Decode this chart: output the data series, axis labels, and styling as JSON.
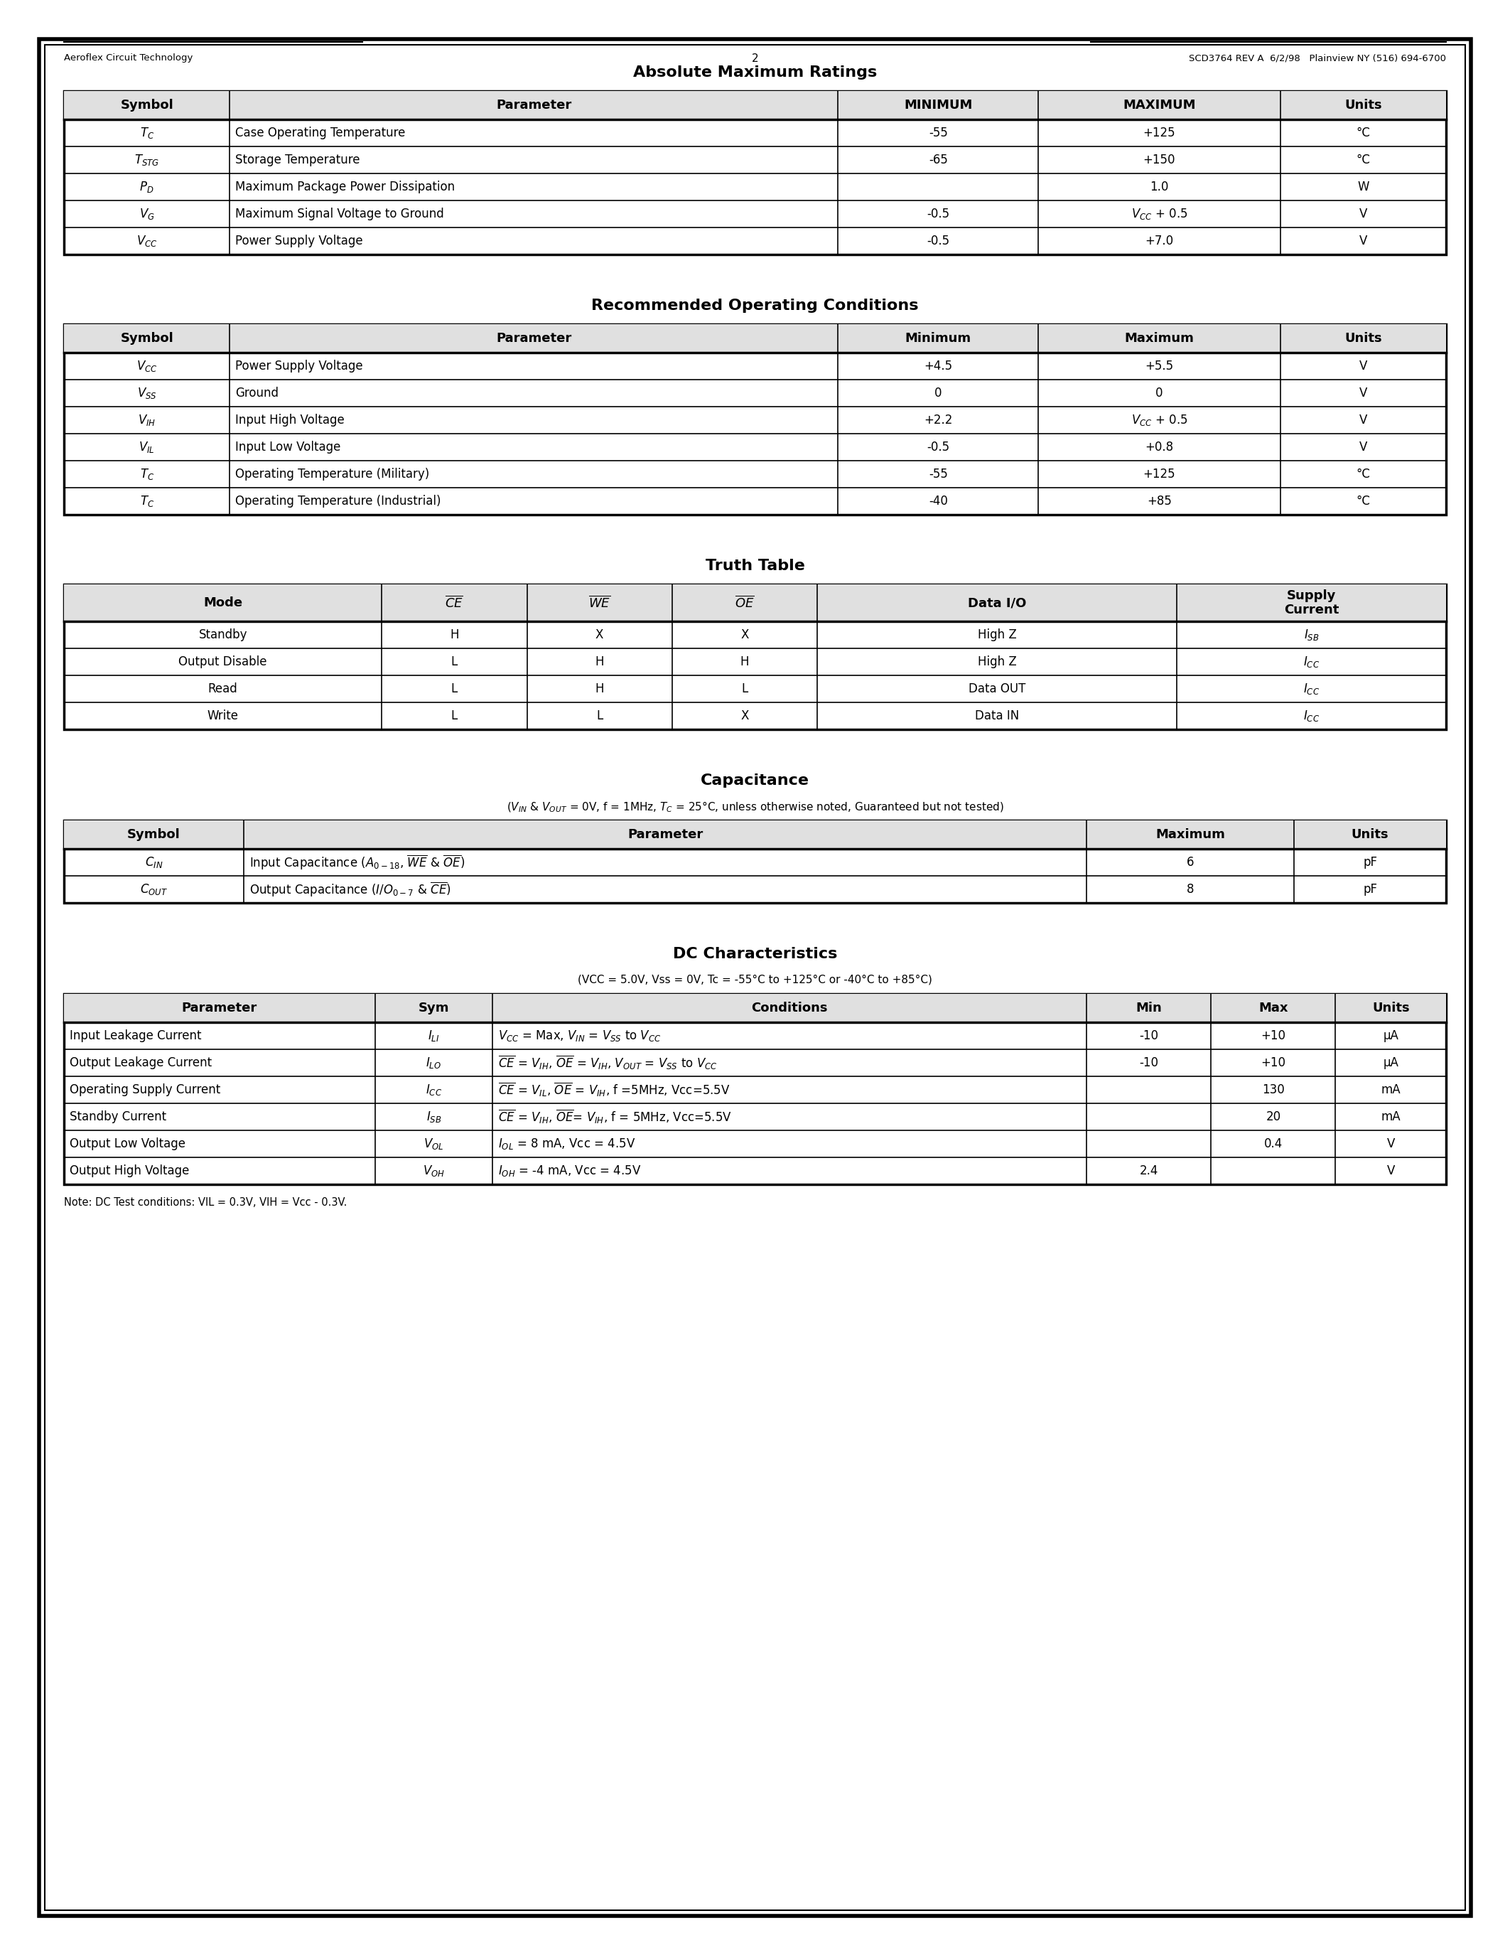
{
  "page_background": "#ffffff",
  "footer_left": "Aeroflex Circuit Technology",
  "footer_center": "2",
  "footer_right": "SCD3764 REV A  6/2/98   Plainview NY (516) 694-6700"
}
